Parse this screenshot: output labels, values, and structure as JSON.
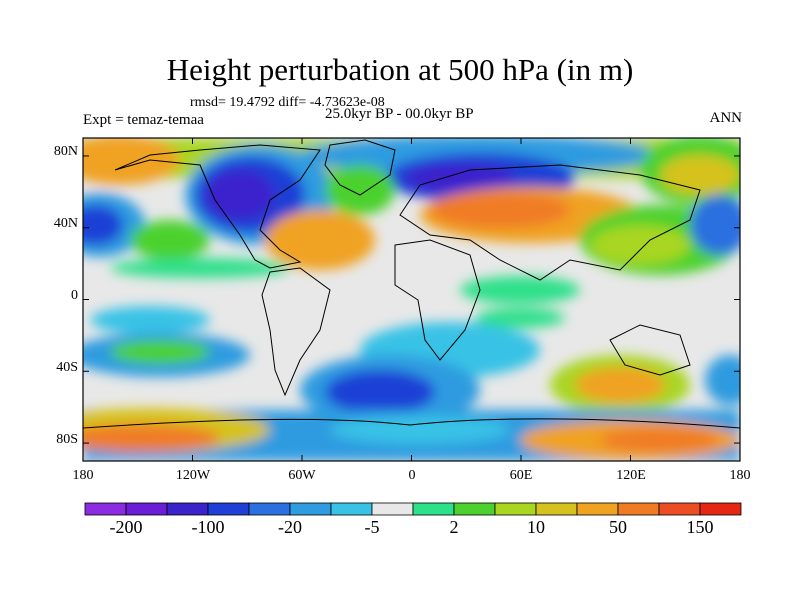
{
  "title": "Height perturbation at 500 hPa (in m)",
  "stats": "rmsd= 19.4792 diff= -4.73623e-08",
  "period": "25.0kyr BP - 00.0kyr BP",
  "experiment": "Expt = temaz-temaa",
  "season": "ANN",
  "map": {
    "lon_range": [
      -180,
      180
    ],
    "lat_range": [
      -90,
      90
    ],
    "y_ticks": [
      "80N",
      "40N",
      "0",
      "40S",
      "80S"
    ],
    "x_ticks": [
      "180",
      "120W",
      "60W",
      "0",
      "60E",
      "120E",
      "180"
    ]
  },
  "colorbar": {
    "colors": [
      "#8b2be2",
      "#6a1fd6",
      "#3b23cc",
      "#1f3fd6",
      "#2c6fe0",
      "#2f9be0",
      "#38c2e6",
      "#e8e8e8",
      "#2de08a",
      "#4cd12e",
      "#a9d621",
      "#d6c21f",
      "#f0a221",
      "#f07b25",
      "#ec4d22",
      "#e32713"
    ],
    "labels": [
      "-200",
      "-100",
      "-20",
      "-5",
      "2",
      "10",
      "50",
      "150"
    ]
  }
}
